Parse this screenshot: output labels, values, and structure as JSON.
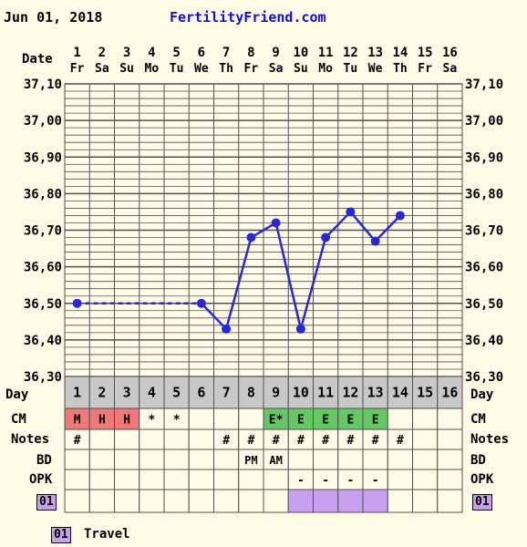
{
  "header": {
    "date": "Jun 01, 2018",
    "site": "FertilityFriend.com"
  },
  "row_labels": {
    "date": "Date",
    "day": "Day",
    "cm": "CM",
    "notes": "Notes",
    "bd": "BD",
    "opk": "OPK",
    "travel_code": "01"
  },
  "legend": {
    "code": "01",
    "label": "Travel"
  },
  "colors": {
    "grid": "#505050",
    "day_row": "#c8c8c8",
    "menses": "#f07878",
    "cm_egg": "#64c864",
    "travel": "#c8a0f0",
    "line": "#2828d8",
    "background": "#fffbe6"
  },
  "chart_data": {
    "type": "line",
    "y_unit": "Temperature",
    "ylim": [
      36.3,
      37.1
    ],
    "y_ticks": [
      "36,30",
      "36,40",
      "36,50",
      "36,60",
      "36,70",
      "36,80",
      "36,90",
      "37,00",
      "37,10"
    ],
    "days": [
      {
        "day": 1,
        "weekday": "Fr"
      },
      {
        "day": 2,
        "weekday": "Sa"
      },
      {
        "day": 3,
        "weekday": "Su"
      },
      {
        "day": 4,
        "weekday": "Mo"
      },
      {
        "day": 5,
        "weekday": "Tu"
      },
      {
        "day": 6,
        "weekday": "We"
      },
      {
        "day": 7,
        "weekday": "Th"
      },
      {
        "day": 8,
        "weekday": "Fr"
      },
      {
        "day": 9,
        "weekday": "Sa"
      },
      {
        "day": 10,
        "weekday": "Su"
      },
      {
        "day": 11,
        "weekday": "Mo"
      },
      {
        "day": 12,
        "weekday": "Tu"
      },
      {
        "day": 13,
        "weekday": "We"
      },
      {
        "day": 14,
        "weekday": "Th"
      },
      {
        "day": 15,
        "weekday": "Fr"
      },
      {
        "day": 16,
        "weekday": "Sa"
      }
    ],
    "temps": [
      {
        "day": 1,
        "value": 36.5
      },
      {
        "day": 6,
        "value": 36.5
      },
      {
        "day": 7,
        "value": 36.43
      },
      {
        "day": 8,
        "value": 36.68
      },
      {
        "day": 9,
        "value": 36.72
      },
      {
        "day": 10,
        "value": 36.43
      },
      {
        "day": 11,
        "value": 36.68
      },
      {
        "day": 12,
        "value": 36.75
      },
      {
        "day": 13,
        "value": 36.67
      },
      {
        "day": 14,
        "value": 36.74
      }
    ],
    "dashed_segment_days": [
      1,
      6
    ],
    "cm": [
      "M",
      "H",
      "H",
      "*",
      "*",
      "",
      "",
      "",
      "E*",
      "E",
      "E",
      "E",
      "E",
      "",
      "",
      ""
    ],
    "cm_type": [
      "menses",
      "menses",
      "menses",
      "none",
      "none",
      "none",
      "none",
      "none",
      "egg",
      "egg",
      "egg",
      "egg",
      "egg",
      "none",
      "none",
      "none"
    ],
    "notes": [
      "#",
      "",
      "",
      "",
      "",
      "",
      "#",
      "#",
      "#",
      "#",
      "#",
      "#",
      "#",
      "#",
      "",
      ""
    ],
    "bd": [
      "",
      "",
      "",
      "",
      "",
      "",
      "",
      "PM",
      "AM",
      "",
      "",
      "",
      "",
      "",
      "",
      ""
    ],
    "opk": [
      "",
      "",
      "",
      "",
      "",
      "",
      "",
      "",
      "",
      "-",
      "-",
      "-",
      "-",
      "",
      "",
      ""
    ],
    "travel": [
      false,
      false,
      false,
      false,
      false,
      false,
      false,
      false,
      false,
      true,
      true,
      true,
      true,
      false,
      false,
      false
    ]
  }
}
